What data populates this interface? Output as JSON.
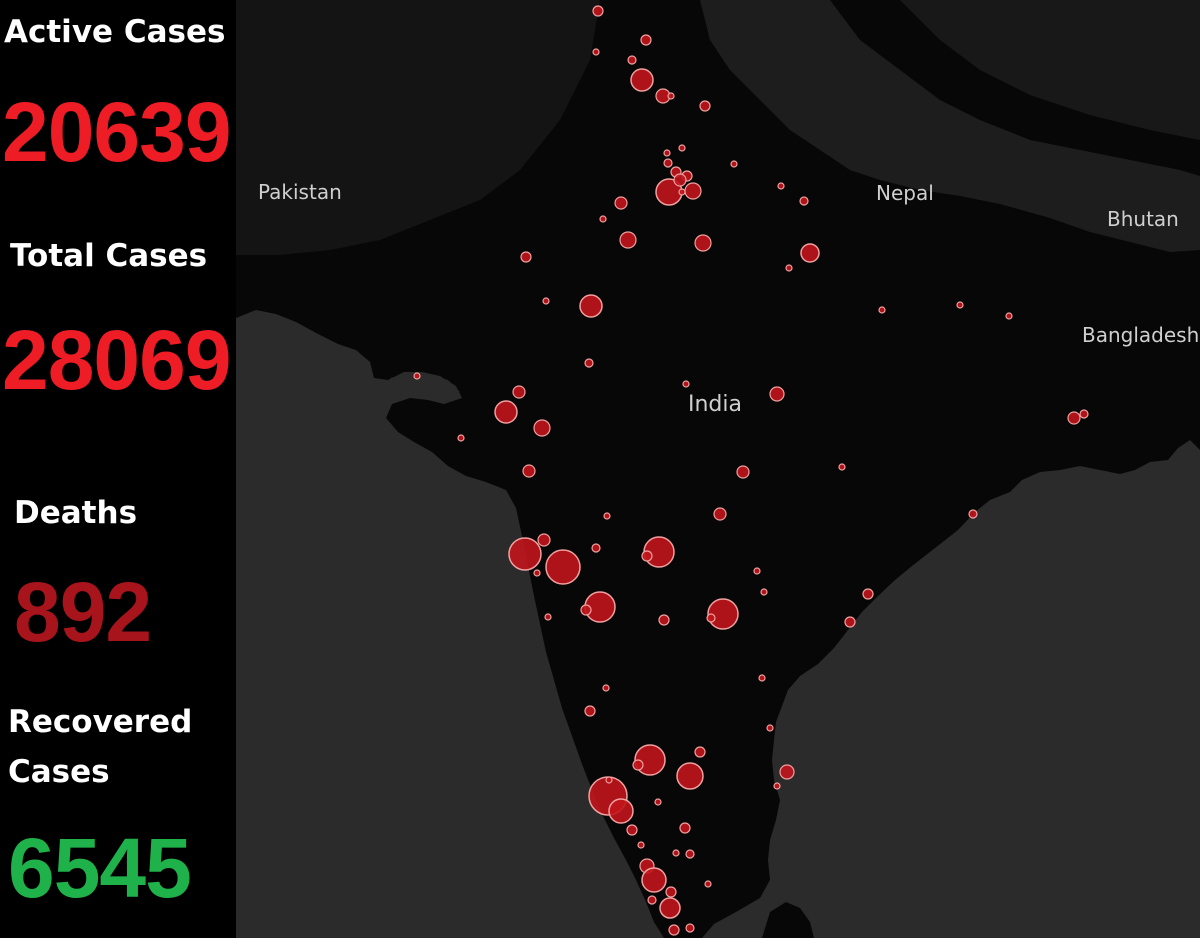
{
  "stats": {
    "active": {
      "label": "Active Cases",
      "value": "20639",
      "color": "#ee1c25"
    },
    "total": {
      "label": "Total Cases",
      "value": "28069",
      "color": "#ee1c25"
    },
    "deaths": {
      "label": "Deaths",
      "value": "892",
      "color": "#a8141c"
    },
    "recovered": {
      "label_line1": "Recovered",
      "label_line2": "Cases",
      "value": "6545",
      "color": "#20b24a"
    }
  },
  "map": {
    "labels": {
      "pakistan": "Pakistan",
      "nepal": "Nepal",
      "bhutan": "Bhutan",
      "bangladesh": "Bangladesh",
      "india": "India"
    },
    "colors": {
      "sea": "#2b2b2b",
      "land": "#070707",
      "marker_fill": "#c0151b",
      "marker_stroke": "#f0a0a0"
    }
  }
}
